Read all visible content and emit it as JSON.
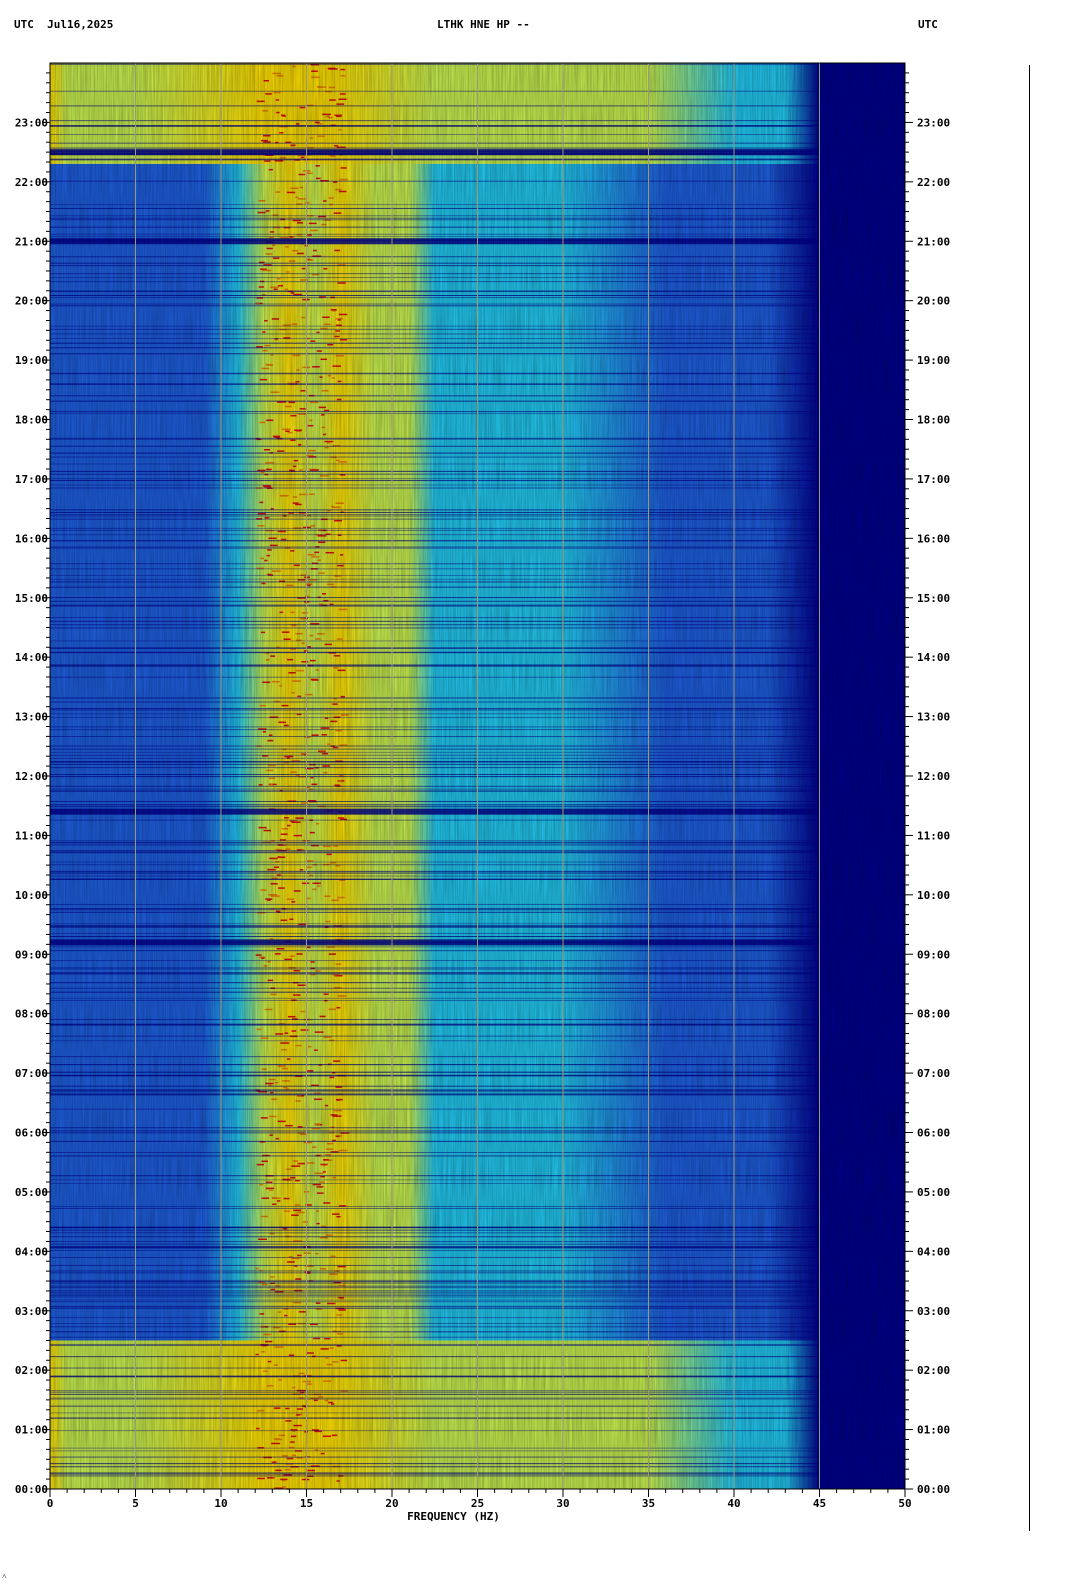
{
  "header": {
    "left": "UTC  Jul16,2025",
    "center": "LTHK HNE HP --",
    "right": "UTC"
  },
  "chart_data": {
    "type": "heatmap",
    "title": "LTHK HNE HP --",
    "date": "Jul16,2025",
    "timezone": "UTC",
    "xlabel": "FREQUENCY (HZ)",
    "ylabel": "",
    "xlim": [
      0,
      50
    ],
    "x_ticks": [
      "0",
      "5",
      "10",
      "15",
      "20",
      "25",
      "30",
      "35",
      "40",
      "45",
      "50"
    ],
    "x_tick_values": [
      0,
      5,
      10,
      15,
      20,
      25,
      30,
      35,
      40,
      45,
      50
    ],
    "ylim_hours": [
      0,
      24
    ],
    "y_ticks": [
      "00:00",
      "01:00",
      "02:00",
      "03:00",
      "04:00",
      "05:00",
      "06:00",
      "07:00",
      "08:00",
      "09:00",
      "10:00",
      "11:00",
      "12:00",
      "13:00",
      "14:00",
      "15:00",
      "16:00",
      "17:00",
      "18:00",
      "19:00",
      "20:00",
      "21:00",
      "22:00",
      "23:00"
    ],
    "y_tick_hours": [
      0,
      1,
      2,
      3,
      4,
      5,
      6,
      7,
      8,
      9,
      10,
      11,
      12,
      13,
      14,
      15,
      16,
      17,
      18,
      19,
      20,
      21,
      22,
      23
    ],
    "grid": true,
    "colors": {
      "low": "#00008f",
      "lowmid": "#1e5fe0",
      "mid": "#22c8f0",
      "midhigh": "#c8f050",
      "high": "#ffe000",
      "peak": "#e01010"
    },
    "energy_bands_hz": [
      {
        "from": 12,
        "to": 16,
        "level": "high"
      },
      {
        "from": 10,
        "to": 21,
        "level": "midhigh"
      },
      {
        "from": 21,
        "to": 43,
        "level": "mid"
      },
      {
        "from": 45,
        "to": 50,
        "level": "low"
      }
    ],
    "high_noise_periods_hours": [
      {
        "from": 0,
        "to": 2.5
      },
      {
        "from": 22.3,
        "to": 24
      }
    ],
    "quiet_gaps_hours": [
      9.2,
      11.4,
      21.0,
      22.5
    ]
  }
}
